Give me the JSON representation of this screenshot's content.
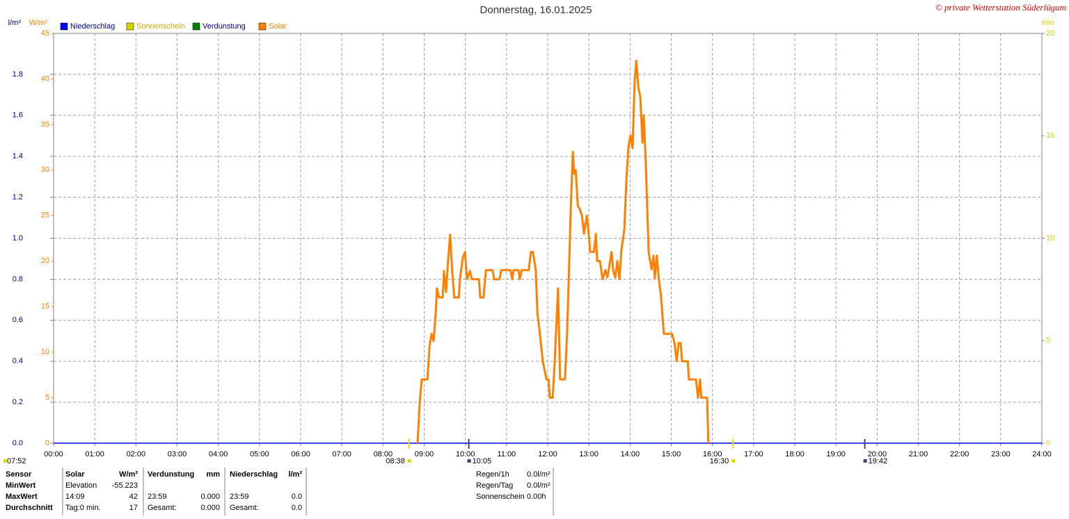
{
  "chart_data": {
    "type": "line",
    "title": "Donnerstag, 16.01.2025",
    "credit": "© private Wetterstation Süderlügum",
    "xlim": [
      0,
      24
    ],
    "xticks": [
      {
        "value": 0,
        "label": "00:00"
      },
      {
        "value": 1,
        "label": "01:00"
      },
      {
        "value": 2,
        "label": "02:00"
      },
      {
        "value": 3,
        "label": "03:00"
      },
      {
        "value": 4,
        "label": "04:00"
      },
      {
        "value": 5,
        "label": "05:00"
      },
      {
        "value": 6,
        "label": "06:00"
      },
      {
        "value": 7,
        "label": "07:00"
      },
      {
        "value": 8,
        "label": "08:00"
      },
      {
        "value": 9,
        "label": "09:00"
      },
      {
        "value": 10,
        "label": "10:00"
      },
      {
        "value": 11,
        "label": "11:00"
      },
      {
        "value": 12,
        "label": "12:00"
      },
      {
        "value": 13,
        "label": "13:00"
      },
      {
        "value": 14,
        "label": "14:00"
      },
      {
        "value": 15,
        "label": "15:00"
      },
      {
        "value": 16,
        "label": "16:00"
      },
      {
        "value": 17,
        "label": "17:00"
      },
      {
        "value": 18,
        "label": "18:00"
      },
      {
        "value": 19,
        "label": "19:00"
      },
      {
        "value": 20,
        "label": "20:00"
      },
      {
        "value": 21,
        "label": "21:00"
      },
      {
        "value": 22,
        "label": "22:00"
      },
      {
        "value": 23,
        "label": "23:00"
      },
      {
        "value": 24,
        "label": "24:00"
      }
    ],
    "ylabel": "W/m²",
    "ylim": [
      0,
      45
    ],
    "yticks": [
      0,
      5,
      10,
      15,
      20,
      25,
      30,
      35,
      40,
      45
    ],
    "y2label": "min",
    "y2lim": [
      0,
      20
    ],
    "y2ticks": [
      0,
      5,
      10,
      15,
      20
    ],
    "y3label": "l/m²",
    "y3lim": [
      0,
      2
    ],
    "y3ticks": [
      {
        "value": 0,
        "label": "0.0"
      },
      0.2,
      0.4,
      0.6,
      0.8,
      {
        "value": 1,
        "label": "1.0"
      },
      1.2,
      1.4,
      1.6,
      1.8
    ],
    "grid": true,
    "series": [
      {
        "name": "Niederschlag",
        "color": "#0000ff",
        "axis": "y3",
        "x": [
          0,
          24
        ],
        "values": [
          0,
          0
        ]
      },
      {
        "name": "Sonnenschein",
        "color": "#d4d400",
        "axis": "y2"
      },
      {
        "name": "Verdunstung",
        "color": "#008000",
        "axis": "y3"
      },
      {
        "name": "Solar",
        "color": "#ff8000",
        "axis": "y",
        "x": [
          8.84,
          8.89,
          8.94,
          9.08,
          9.13,
          9.18,
          9.23,
          9.28,
          9.31,
          9.36,
          9.45,
          9.48,
          9.53,
          9.58,
          9.63,
          9.68,
          9.73,
          9.84,
          9.87,
          9.94,
          9.99,
          10.04,
          10.11,
          10.16,
          10.33,
          10.36,
          10.44,
          10.5,
          10.66,
          10.7,
          10.83,
          10.87,
          11.09,
          11.14,
          11.17,
          11.29,
          11.32,
          11.37,
          11.54,
          11.59,
          11.64,
          11.71,
          11.75,
          11.81,
          11.88,
          11.97,
          12.02,
          12.05,
          12.12,
          12.17,
          12.22,
          12.25,
          12.3,
          12.42,
          12.47,
          12.52,
          12.56,
          12.61,
          12.64,
          12.68,
          12.73,
          12.78,
          12.83,
          12.88,
          12.95,
          13.0,
          13.03,
          13.12,
          13.17,
          13.2,
          13.27,
          13.33,
          13.4,
          13.45,
          13.5,
          13.55,
          13.59,
          13.64,
          13.69,
          13.74,
          13.79,
          13.86,
          13.91,
          13.96,
          14.01,
          14.06,
          14.11,
          14.15,
          14.2,
          14.25,
          14.3,
          14.33,
          14.38,
          14.45,
          14.52,
          14.57,
          14.6,
          14.65,
          14.7,
          14.75,
          14.82,
          15.02,
          15.08,
          15.13,
          15.18,
          15.23,
          15.26,
          15.4,
          15.43,
          15.6,
          15.65,
          15.7,
          15.73,
          15.87,
          15.9
        ],
        "values": [
          0,
          4.4,
          7,
          7,
          10.7,
          12,
          11.2,
          14.3,
          17,
          16,
          16,
          18.9,
          16.6,
          20,
          22.9,
          18.9,
          16,
          16,
          18.1,
          20.4,
          21,
          18,
          18.9,
          18,
          18,
          16,
          16,
          19,
          19,
          18,
          18,
          19,
          19,
          18,
          19,
          19,
          18,
          19,
          19,
          21,
          21,
          19,
          14.3,
          12,
          9,
          7,
          7,
          5,
          5,
          9,
          13.9,
          17,
          7,
          7,
          12,
          19.6,
          25.7,
          32,
          29.6,
          30,
          26.1,
          25.7,
          25,
          23,
          25,
          22.7,
          21,
          21,
          23,
          20,
          20,
          18,
          19,
          18.2,
          19.6,
          21,
          18.9,
          18.2,
          20,
          18,
          21.2,
          23.5,
          28.8,
          32.6,
          33.8,
          32.4,
          39.5,
          42,
          39.1,
          38,
          33,
          36,
          31,
          21,
          19.1,
          20.6,
          18.1,
          20.6,
          18,
          16.2,
          12,
          12,
          11,
          9,
          11,
          11,
          9,
          9,
          7,
          7,
          5,
          7,
          5,
          5,
          0
        ]
      }
    ],
    "markers": [
      {
        "x": 8.633,
        "label": "08:38",
        "color": "#e0e000"
      },
      {
        "x": 10.083,
        "label": "10:05",
        "color": "#404080"
      },
      {
        "x": 16.5,
        "label": "16:30",
        "color": "#e0e000"
      },
      {
        "x": 19.7,
        "label": "19:42",
        "color": "#404080"
      }
    ],
    "left_note": "07:52"
  },
  "stats": {
    "sensor": [
      "Sensor",
      "MinWert",
      "MaxWert",
      "Durchschnitt"
    ],
    "solar": [
      [
        "Solar",
        "W/m²"
      ],
      [
        "Elevation",
        "-55.223"
      ],
      [
        "14:09",
        "42"
      ],
      [
        "Tag:0 min.",
        "17"
      ]
    ],
    "verdunstung": [
      [
        "Verdunstung",
        "mm"
      ],
      [
        "23:59",
        "0.000"
      ],
      [
        "Gesamt:",
        "0.000"
      ]
    ],
    "niederschlag": [
      [
        "Niederschlag",
        "l/m²"
      ],
      [
        "23:59",
        "0.0"
      ],
      [
        "Gesamt:",
        "0.0"
      ]
    ],
    "rain": [
      [
        "Regen/1h",
        "0.0l/m²"
      ],
      [
        "Regen/Tag",
        "0.0l/m²"
      ],
      [
        "Sonnenschein",
        "0.00h"
      ]
    ]
  }
}
